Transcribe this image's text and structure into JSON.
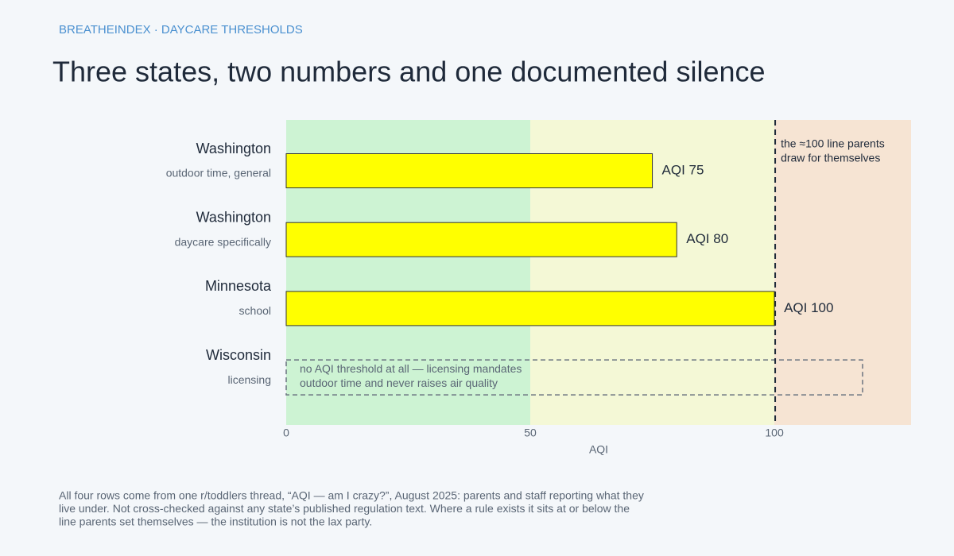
{
  "kicker": "BREATHEINDEX · DAYCARE THRESHOLDS",
  "chart_data": {
    "type": "bar",
    "orientation": "horizontal",
    "title": "Three states, two numbers and one documented silence",
    "categories": [
      "Washington",
      "Washington",
      "Minnesota",
      "Wisconsin"
    ],
    "subcategories": [
      "outdoor time, general",
      "daycare specifically",
      "school",
      "licensing"
    ],
    "values": [
      75,
      80,
      100,
      null
    ],
    "value_labels": [
      "AQI 75",
      "AQI 80",
      "AQI 100",
      null
    ],
    "color": "#ffff00",
    "xlabel": "AQI",
    "xlim": [
      0,
      128
    ],
    "xticks": [
      0,
      50,
      100
    ],
    "bands": [
      {
        "from": 0,
        "to": 50,
        "color": "#cdf3d3"
      },
      {
        "from": 50,
        "to": 100,
        "color": "#f4f8d6"
      },
      {
        "from": 100,
        "to": 128,
        "color": "#f6e4d3"
      }
    ],
    "reference_line": {
      "value": 100,
      "label_lines": [
        "the ≈100 line parents",
        "draw for themselves"
      ]
    },
    "missing_note_lines": [
      "no AQI threshold at all — licensing mandates",
      "outdoor time and never raises air quality"
    ]
  },
  "footnote_lines": [
    "All four rows come from one r/toddlers thread, “AQI — am I crazy?”, August 2025: parents and staff reporting what they",
    "live under. Not cross-checked against any state’s published regulation text. Where a rule exists it sits at or below the",
    "line parents set themselves — the institution is not the lax party."
  ]
}
